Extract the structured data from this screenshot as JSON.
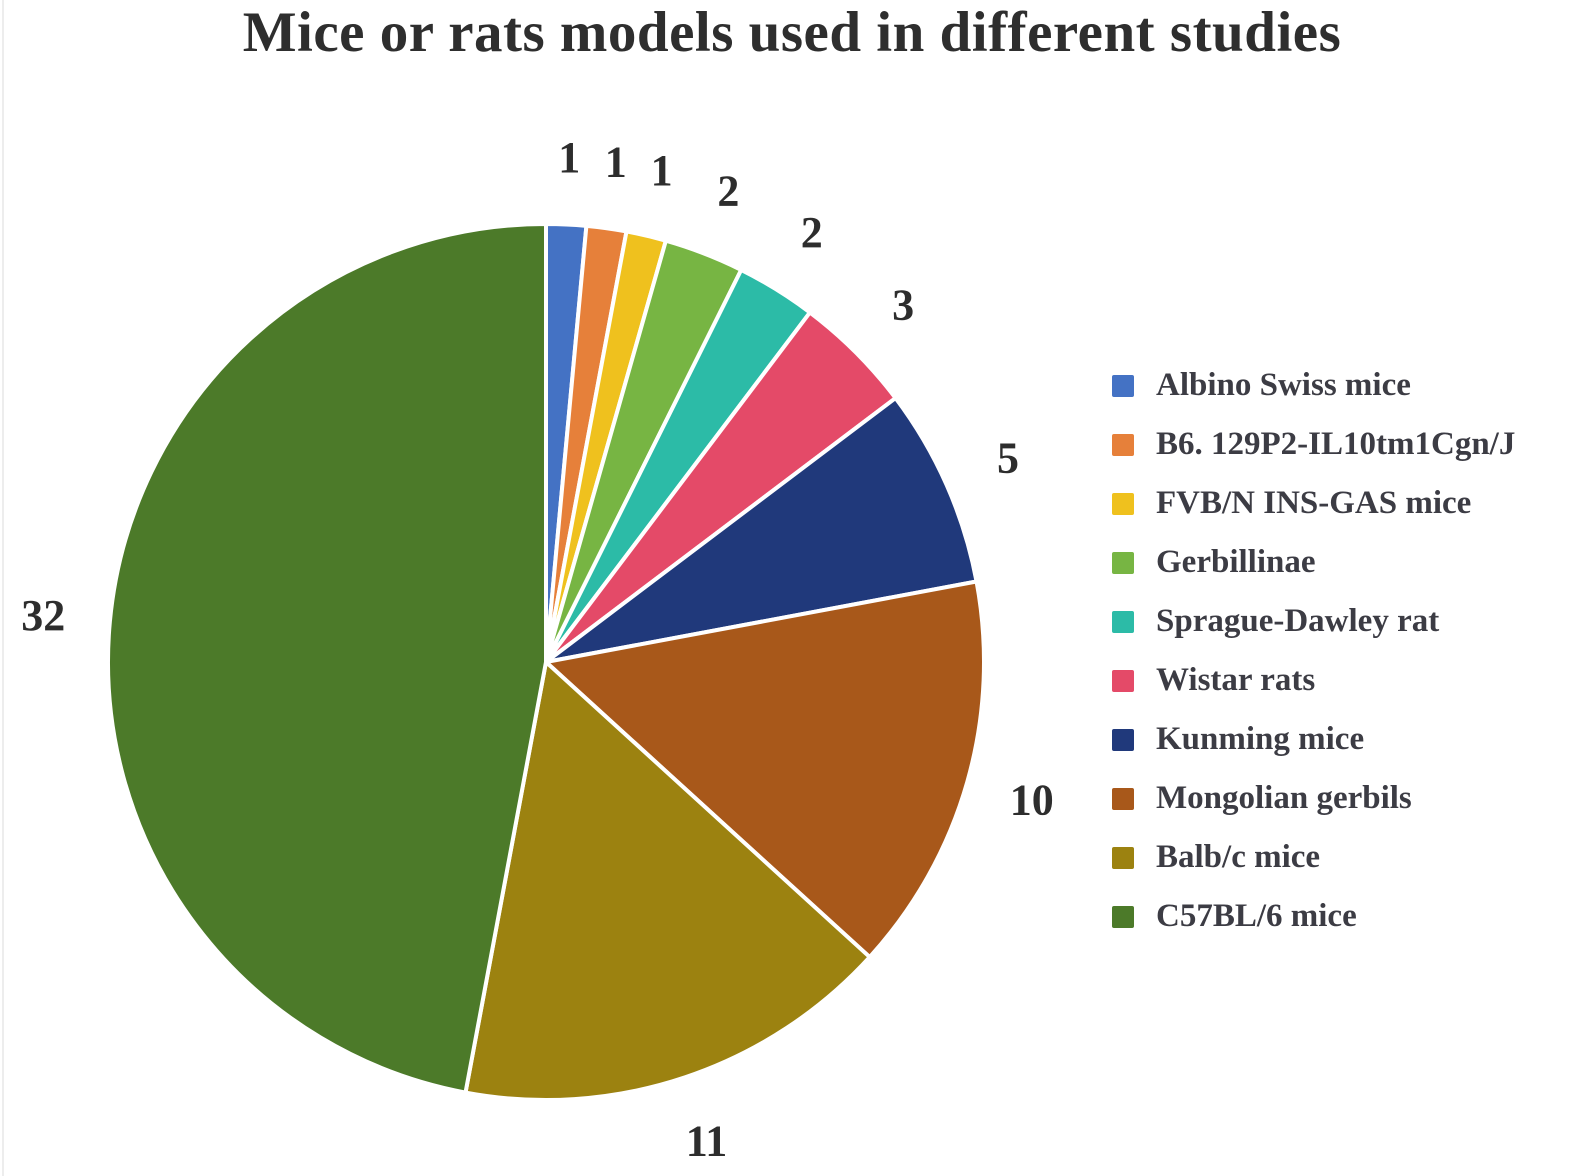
{
  "chart_data": {
    "type": "pie",
    "title": "Mice or rats models used in different studies",
    "direction": "clockwise",
    "start_angle": "12-oclock",
    "total": 68,
    "legend_position": "right",
    "grid": false,
    "slice_border_color": "#FFFFFF",
    "value_label_color": "#2d2d2d",
    "title_color": "#2e2e2e",
    "slices": [
      {
        "label": "Albino Swiss mice",
        "value": 1,
        "color": "#4472C4"
      },
      {
        "label": "B6. 129P2-IL10tm1Cgn/J",
        "value": 1,
        "color": "#E6803A"
      },
      {
        "label": "FVB/N INS-GAS mice",
        "value": 1,
        "color": "#EFC11E"
      },
      {
        "label": "Gerbillinae",
        "value": 2,
        "color": "#77B543"
      },
      {
        "label": "Sprague-Dawley rat",
        "value": 2,
        "color": "#2CBBA7"
      },
      {
        "label": "Wistar rats",
        "value": 3,
        "color": "#E44A68"
      },
      {
        "label": "Kunming mice",
        "value": 5,
        "color": "#20397B"
      },
      {
        "label": "Mongolian gerbils",
        "value": 10,
        "color": "#A8581A"
      },
      {
        "label": "Balb/c mice",
        "value": 11,
        "color": "#9C8210"
      },
      {
        "label": "C57BL/6 mice",
        "value": 32,
        "color": "#4C7A29"
      }
    ]
  }
}
